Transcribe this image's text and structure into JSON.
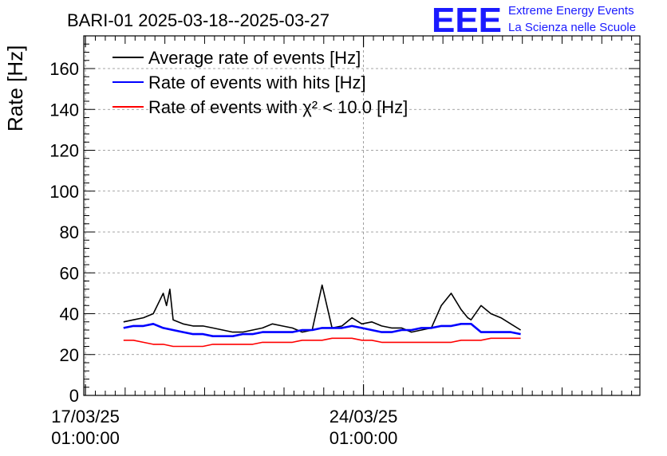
{
  "logo": {
    "mark": "EEE",
    "line1": "Extreme Energy Events",
    "line2": "La Scienza nelle Scuole",
    "color": "#1a1aff"
  },
  "chart_data": {
    "type": "line",
    "title": "BARI-01 2025-03-18--2025-03-27",
    "xlabel": "",
    "ylabel": "Rate [Hz]",
    "ylim": [
      0,
      176
    ],
    "yticks": [
      0,
      20,
      40,
      60,
      80,
      100,
      120,
      140,
      160
    ],
    "xlim": [
      "2025-03-17 00:00",
      "2025-03-31 00:00"
    ],
    "xticks": [
      {
        "date": "2025-03-17 01:00",
        "label1": "17/03/25",
        "label2": "01:00:00"
      },
      {
        "date": "2025-03-24 01:00",
        "label1": "24/03/25",
        "label2": "01:00:00"
      }
    ],
    "grid": true,
    "legend_position": "top-left",
    "legend": [
      {
        "label": "Average rate of events [Hz]",
        "color": "#000000"
      },
      {
        "label": "Rate of events with hits [Hz]",
        "color": "#0000ff"
      },
      {
        "label": "Rate of events with χ² < 10.0 [Hz]",
        "color": "#ff0000"
      }
    ],
    "series": [
      {
        "name": "Average rate of events [Hz]",
        "color": "#000000",
        "x": [
          "2025-03-18 00:00",
          "2025-03-18 06:00",
          "2025-03-18 12:00",
          "2025-03-18 18:00",
          "2025-03-19 00:00",
          "2025-03-19 02:00",
          "2025-03-19 04:00",
          "2025-03-19 06:00",
          "2025-03-19 12:00",
          "2025-03-19 18:00",
          "2025-03-20 00:00",
          "2025-03-20 06:00",
          "2025-03-20 12:00",
          "2025-03-20 18:00",
          "2025-03-21 00:00",
          "2025-03-21 06:00",
          "2025-03-21 12:00",
          "2025-03-21 18:00",
          "2025-03-22 00:00",
          "2025-03-22 06:00",
          "2025-03-22 12:00",
          "2025-03-22 18:00",
          "2025-03-23 00:00",
          "2025-03-23 06:00",
          "2025-03-23 12:00",
          "2025-03-23 18:00",
          "2025-03-24 00:00",
          "2025-03-24 06:00",
          "2025-03-24 12:00",
          "2025-03-24 18:00",
          "2025-03-25 00:00",
          "2025-03-25 06:00",
          "2025-03-25 12:00",
          "2025-03-25 18:00",
          "2025-03-26 00:00",
          "2025-03-26 06:00",
          "2025-03-26 12:00",
          "2025-03-26 16:00",
          "2025-03-26 18:00",
          "2025-03-27 00:00",
          "2025-03-27 06:00",
          "2025-03-27 12:00",
          "2025-03-27 18:00",
          "2025-03-28 00:00"
        ],
        "y": [
          36,
          37,
          38,
          40,
          50,
          44,
          52,
          37,
          35,
          34,
          34,
          33,
          32,
          31,
          31,
          32,
          33,
          35,
          34,
          33,
          31,
          32,
          54,
          33,
          34,
          38,
          35,
          36,
          34,
          33,
          33,
          31,
          32,
          33,
          44,
          50,
          42,
          38,
          37,
          44,
          40,
          38,
          35,
          32
        ]
      },
      {
        "name": "Rate of events with hits [Hz]",
        "color": "#0000ff",
        "x": [
          "2025-03-18 00:00",
          "2025-03-18 06:00",
          "2025-03-18 12:00",
          "2025-03-18 18:00",
          "2025-03-19 00:00",
          "2025-03-19 06:00",
          "2025-03-19 12:00",
          "2025-03-19 18:00",
          "2025-03-20 00:00",
          "2025-03-20 06:00",
          "2025-03-20 12:00",
          "2025-03-20 18:00",
          "2025-03-21 00:00",
          "2025-03-21 06:00",
          "2025-03-21 12:00",
          "2025-03-21 18:00",
          "2025-03-22 00:00",
          "2025-03-22 06:00",
          "2025-03-22 12:00",
          "2025-03-22 18:00",
          "2025-03-23 00:00",
          "2025-03-23 06:00",
          "2025-03-23 12:00",
          "2025-03-23 18:00",
          "2025-03-24 00:00",
          "2025-03-24 06:00",
          "2025-03-24 12:00",
          "2025-03-24 18:00",
          "2025-03-25 00:00",
          "2025-03-25 06:00",
          "2025-03-25 12:00",
          "2025-03-25 18:00",
          "2025-03-26 00:00",
          "2025-03-26 06:00",
          "2025-03-26 12:00",
          "2025-03-26 18:00",
          "2025-03-27 00:00",
          "2025-03-27 06:00",
          "2025-03-27 12:00",
          "2025-03-27 18:00",
          "2025-03-28 00:00"
        ],
        "y": [
          33,
          34,
          34,
          35,
          33,
          32,
          31,
          30,
          30,
          29,
          29,
          29,
          30,
          30,
          31,
          31,
          31,
          31,
          32,
          32,
          33,
          33,
          33,
          34,
          33,
          32,
          31,
          31,
          32,
          32,
          33,
          33,
          34,
          34,
          35,
          35,
          31,
          31,
          31,
          31,
          30
        ]
      },
      {
        "name": "Rate of events with χ² < 10.0 [Hz]",
        "color": "#ff0000",
        "x": [
          "2025-03-18 00:00",
          "2025-03-18 06:00",
          "2025-03-18 12:00",
          "2025-03-18 18:00",
          "2025-03-19 00:00",
          "2025-03-19 06:00",
          "2025-03-19 12:00",
          "2025-03-19 18:00",
          "2025-03-20 00:00",
          "2025-03-20 06:00",
          "2025-03-20 12:00",
          "2025-03-20 18:00",
          "2025-03-21 00:00",
          "2025-03-21 06:00",
          "2025-03-21 12:00",
          "2025-03-21 18:00",
          "2025-03-22 00:00",
          "2025-03-22 06:00",
          "2025-03-22 12:00",
          "2025-03-22 18:00",
          "2025-03-23 00:00",
          "2025-03-23 06:00",
          "2025-03-23 12:00",
          "2025-03-23 18:00",
          "2025-03-24 00:00",
          "2025-03-24 06:00",
          "2025-03-24 12:00",
          "2025-03-24 18:00",
          "2025-03-25 00:00",
          "2025-03-25 06:00",
          "2025-03-25 12:00",
          "2025-03-25 18:00",
          "2025-03-26 00:00",
          "2025-03-26 06:00",
          "2025-03-26 12:00",
          "2025-03-26 18:00",
          "2025-03-27 00:00",
          "2025-03-27 06:00",
          "2025-03-27 12:00",
          "2025-03-27 18:00",
          "2025-03-28 00:00"
        ],
        "y": [
          27,
          27,
          26,
          25,
          25,
          24,
          24,
          24,
          24,
          25,
          25,
          25,
          25,
          25,
          26,
          26,
          26,
          26,
          27,
          27,
          27,
          28,
          28,
          28,
          27,
          27,
          26,
          26,
          26,
          26,
          26,
          26,
          26,
          26,
          27,
          27,
          27,
          28,
          28,
          28,
          28
        ]
      }
    ]
  }
}
